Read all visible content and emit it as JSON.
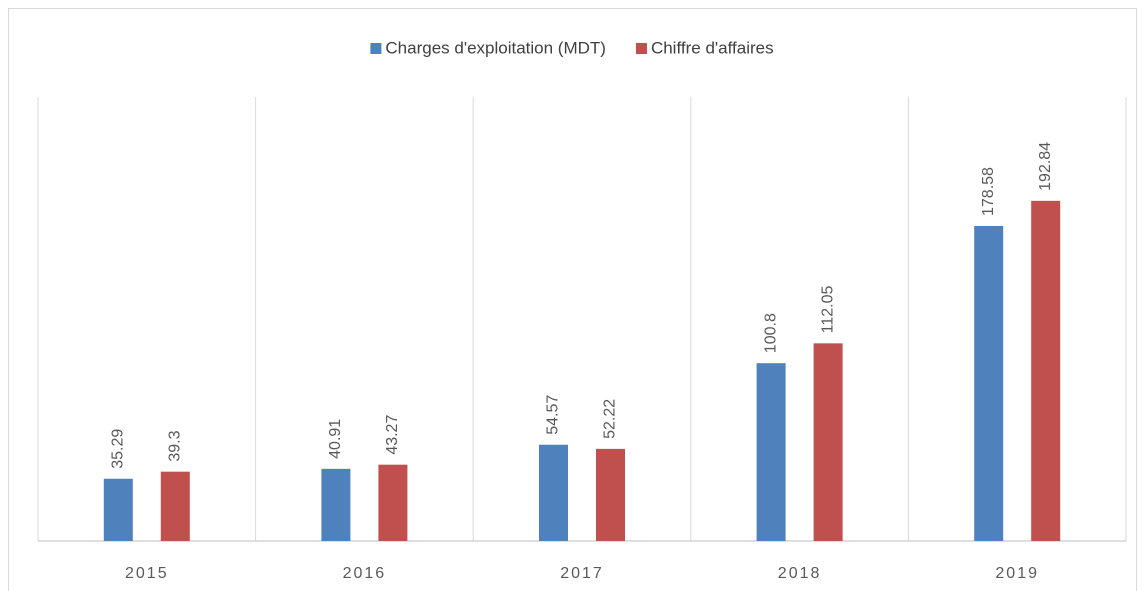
{
  "chart_data": {
    "type": "bar",
    "categories": [
      "2015",
      "2016",
      "2017",
      "2018",
      "2019"
    ],
    "series": [
      {
        "name": "Charges d'exploitation (MDT)",
        "color": "#4f81bd",
        "values": [
          35.29,
          40.91,
          54.57,
          100.8,
          178.58
        ]
      },
      {
        "name": "Chiffre d'affaires",
        "color": "#c0504d",
        "values": [
          39.3,
          43.27,
          52.22,
          112.05,
          192.84
        ]
      }
    ],
    "ylim": [
      0,
      250
    ],
    "legend": "top"
  }
}
